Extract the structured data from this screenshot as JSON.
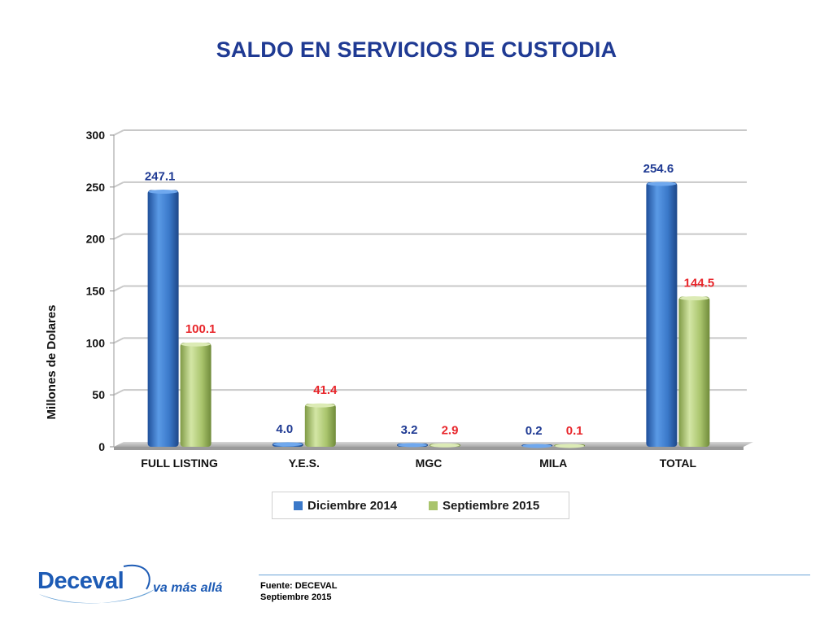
{
  "title": "SALDO EN SERVICIOS DE CUSTODIA",
  "chart_data": {
    "type": "bar",
    "ylabel": "Millones de Dolares",
    "ylim": [
      0,
      300
    ],
    "yticks": [
      0,
      50,
      100,
      150,
      200,
      250,
      300
    ],
    "categories": [
      "FULL LISTING",
      "Y.E.S.",
      "MGC",
      "MILA",
      "TOTAL"
    ],
    "series": [
      {
        "name": "Diciembre 2014",
        "values": [
          247.1,
          4.0,
          3.2,
          0.2,
          254.6
        ],
        "labels": [
          "247.1",
          "4.0",
          "3.2",
          "0.2",
          "254.6"
        ],
        "color": "#3a78c9",
        "label_color": "#1f3a93"
      },
      {
        "name": "Septiembre 2015",
        "values": [
          100.1,
          41.4,
          2.9,
          0.1,
          144.5
        ],
        "labels": [
          "100.1",
          "41.4",
          "2.9",
          "0.1",
          "144.5"
        ],
        "color": "#a9c46c",
        "label_color": "#e8262b"
      }
    ],
    "grid": true,
    "legend_position": "bottom"
  },
  "footer": {
    "source_line1": "Fuente: DECEVAL",
    "source_line2": "Septiembre 2015"
  },
  "logo": {
    "name": "Deceval",
    "slogan": "va más allá"
  }
}
